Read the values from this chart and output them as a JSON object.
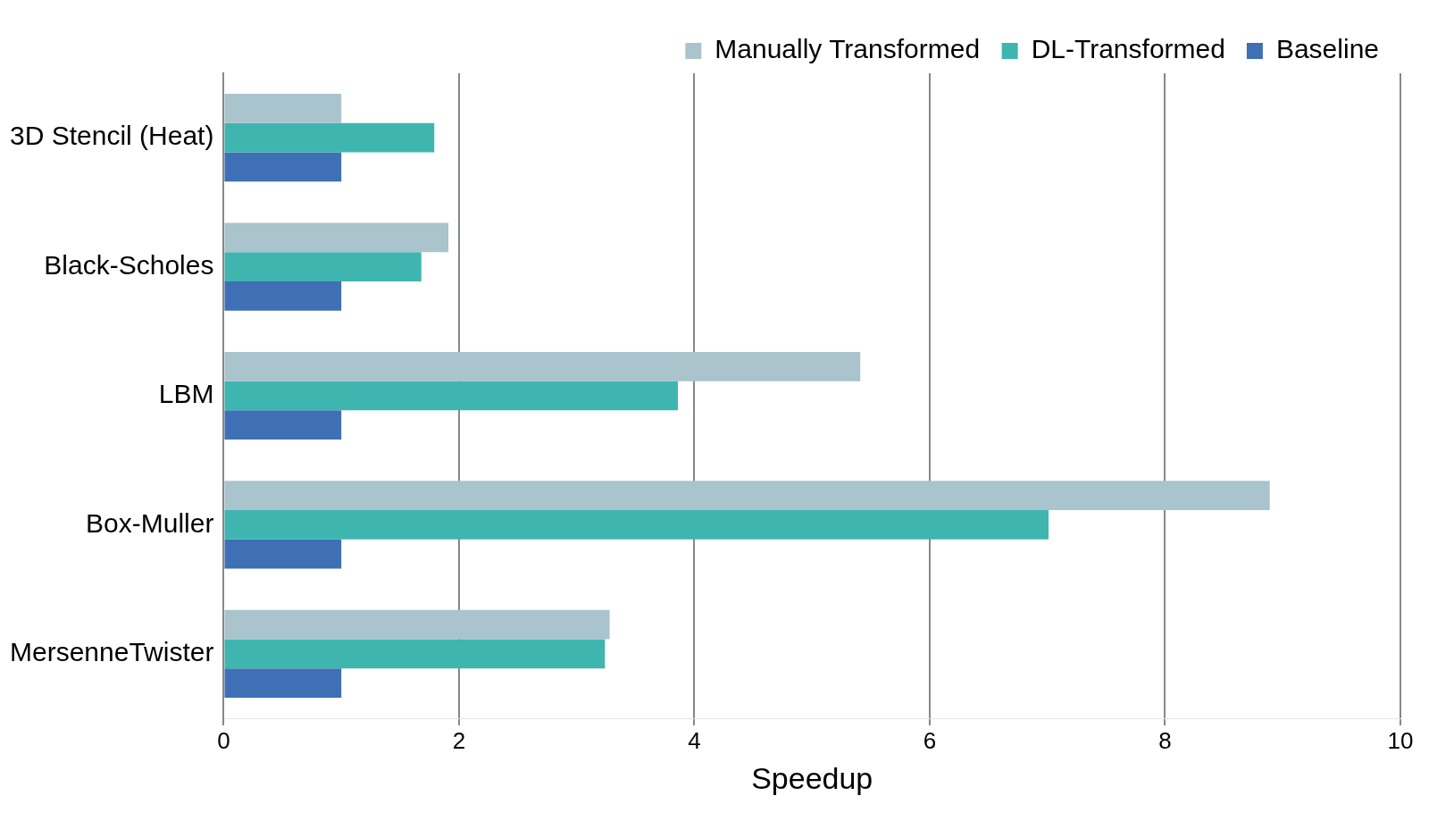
{
  "chart_data": {
    "type": "bar",
    "orientation": "horizontal",
    "xlabel": "Speedup",
    "categories": [
      "3D Stencil (Heat)",
      "Black-Scholes",
      "LBM",
      "Box-Muller",
      "MersenneTwister"
    ],
    "series": [
      {
        "name": "Manually Transformed",
        "color": "#a9c4cc",
        "values": [
          1.0,
          1.91,
          5.41,
          8.89,
          3.28
        ]
      },
      {
        "name": "DL-Transformed",
        "color": "#3fb5b0",
        "values": [
          1.79,
          1.68,
          3.86,
          7.01,
          3.24
        ]
      },
      {
        "name": "Baseline",
        "color": "#3f6fb5",
        "values": [
          1.0,
          1.0,
          1.0,
          1.0,
          1.0
        ]
      }
    ],
    "xlim": [
      0,
      10
    ],
    "xticks": [
      0,
      2,
      4,
      6,
      8,
      10
    ],
    "grid": "x",
    "legend": "top right"
  }
}
